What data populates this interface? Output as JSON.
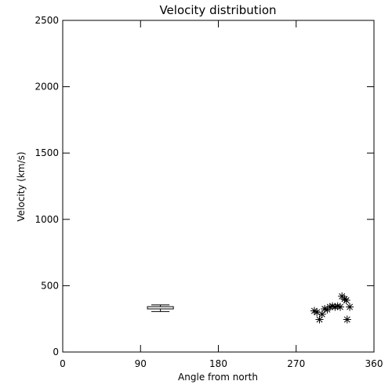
{
  "chart_data": {
    "type": "scatter",
    "title": "Velocity distribution",
    "xlabel": "Angle from north",
    "ylabel": "Velocity (km/s)",
    "xlim": [
      0,
      360
    ],
    "ylim": [
      0,
      2500
    ],
    "x_ticks": [
      0,
      90,
      180,
      270,
      360
    ],
    "y_ticks": [
      0,
      500,
      1000,
      1500,
      2000,
      2500
    ],
    "grid": false,
    "box": {
      "x_center": 113,
      "x_halfwidth": 15,
      "q1": 325,
      "q3": 342,
      "whisker_low": 305,
      "whisker_high": 355
    },
    "points": [
      {
        "x": 291,
        "y": 310
      },
      {
        "x": 294,
        "y": 300
      },
      {
        "x": 297,
        "y": 245
      },
      {
        "x": 300,
        "y": 285
      },
      {
        "x": 303,
        "y": 325
      },
      {
        "x": 306,
        "y": 320
      },
      {
        "x": 309,
        "y": 340
      },
      {
        "x": 312,
        "y": 345
      },
      {
        "x": 315,
        "y": 340
      },
      {
        "x": 318,
        "y": 345
      },
      {
        "x": 321,
        "y": 340
      },
      {
        "x": 323,
        "y": 420
      },
      {
        "x": 326,
        "y": 400
      },
      {
        "x": 328,
        "y": 390
      },
      {
        "x": 329,
        "y": 245
      },
      {
        "x": 332,
        "y": 340
      }
    ]
  }
}
